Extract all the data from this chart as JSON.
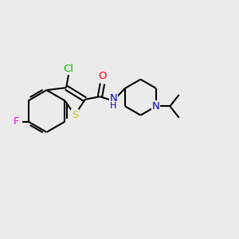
{
  "background_color": "#ebebeb",
  "bond_color": "#000000",
  "lw": 1.5,
  "figsize": [
    3.0,
    3.0
  ],
  "dpi": 100,
  "xlim": [
    0.0,
    1.0
  ],
  "ylim": [
    0.0,
    1.0
  ],
  "colors": {
    "F": "#ff00ff",
    "S": "#cccc00",
    "Cl": "#00bb00",
    "O": "#ff0000",
    "N": "#0000cc",
    "C": "#000000"
  }
}
